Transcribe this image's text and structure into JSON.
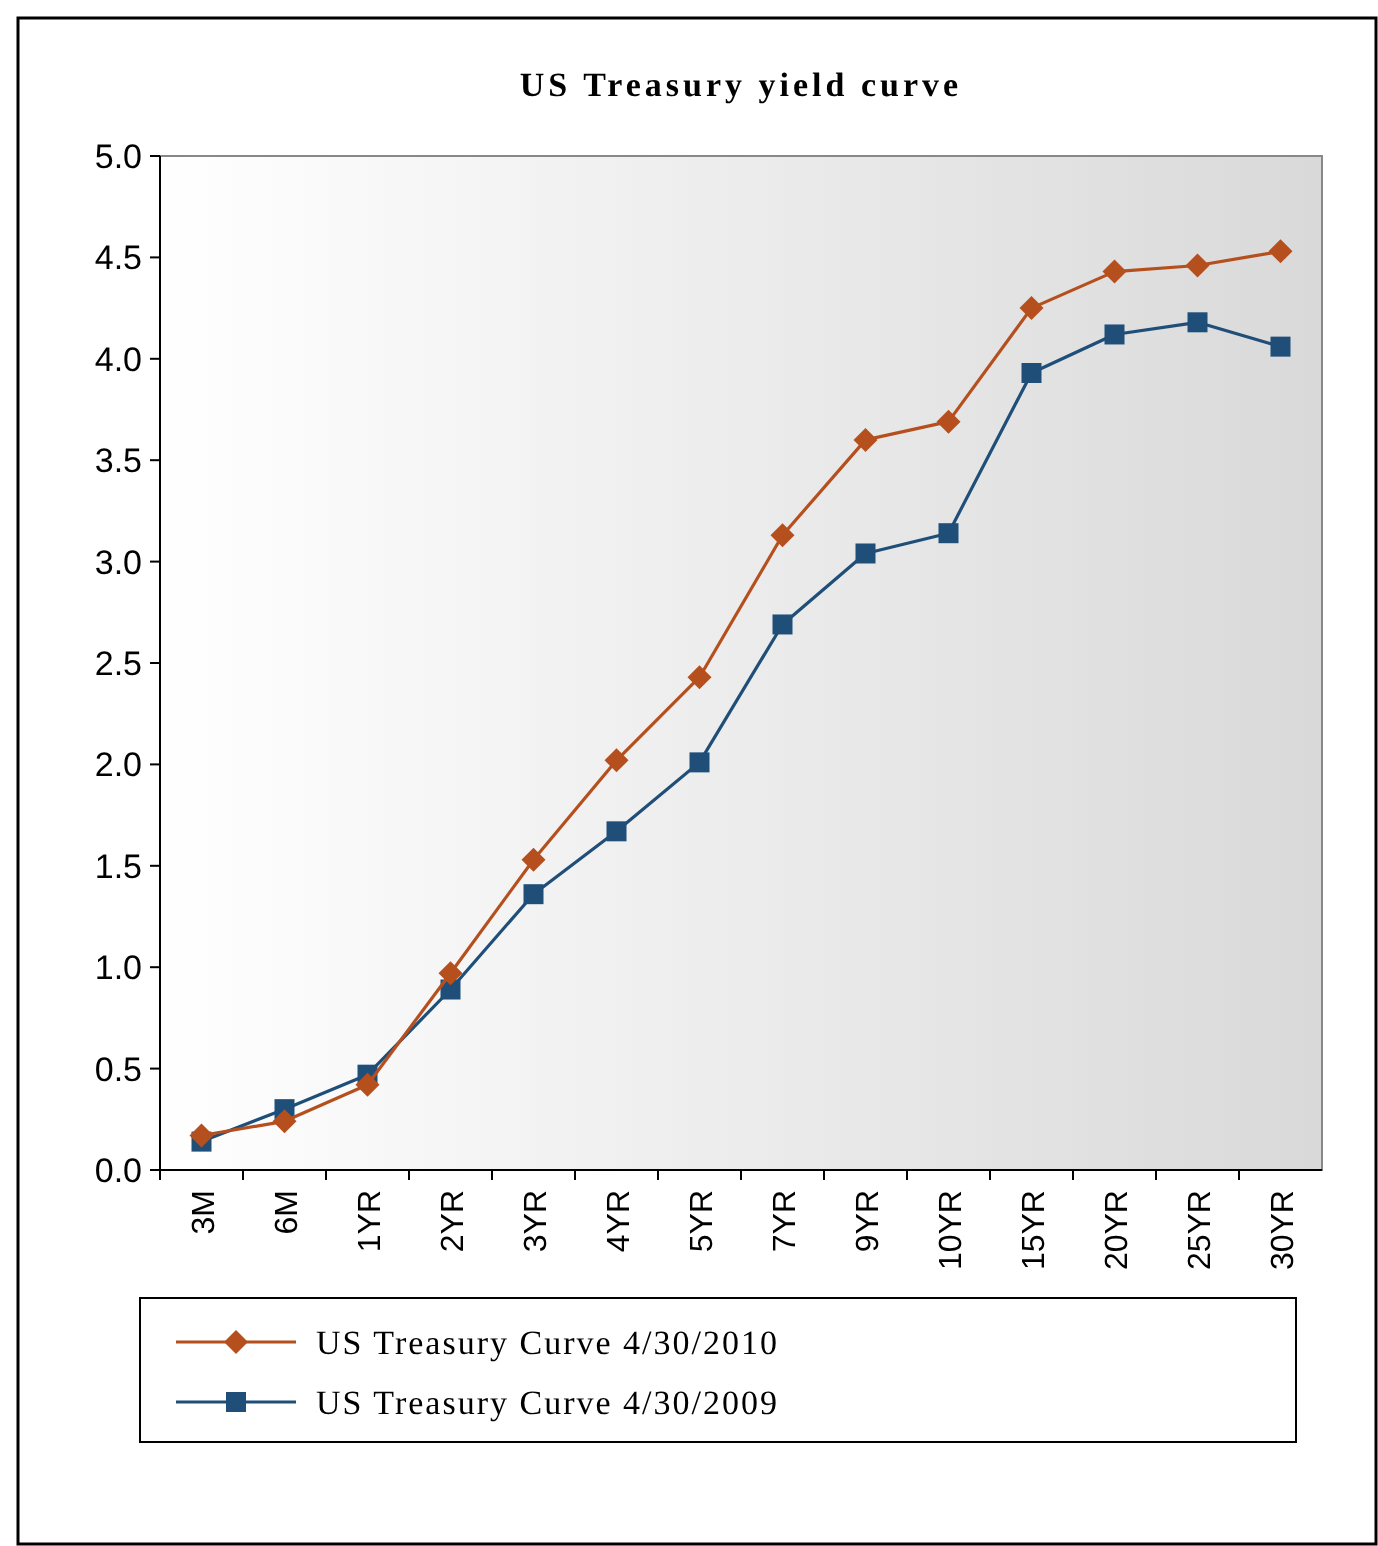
{
  "chart_data": {
    "type": "line",
    "title": "US Treasury yield curve",
    "categories": [
      "3M",
      "6M",
      "1YR",
      "2YR",
      "3YR",
      "4YR",
      "5YR",
      "7YR",
      "9YR",
      "10YR",
      "15YR",
      "20YR",
      "25YR",
      "30YR"
    ],
    "series": [
      {
        "name": "US Treasury Curve 4/30/2010",
        "color": "#b5501e",
        "marker": "diamond",
        "values": [
          0.17,
          0.24,
          0.42,
          0.97,
          1.53,
          2.02,
          2.43,
          3.13,
          3.6,
          3.69,
          4.25,
          4.43,
          4.46,
          4.53
        ]
      },
      {
        "name": "US Treasury Curve 4/30/2009",
        "color": "#1f4e79",
        "marker": "square",
        "values": [
          0.14,
          0.3,
          0.47,
          0.89,
          1.36,
          1.67,
          2.01,
          2.69,
          3.04,
          3.14,
          3.93,
          4.12,
          4.18,
          4.06
        ]
      }
    ],
    "ylim": [
      0,
      5
    ],
    "yticks": [
      {
        "value": 0,
        "label": "0.0"
      },
      {
        "value": 0.5,
        "label": "0.5"
      },
      {
        "value": 1,
        "label": "1.0"
      },
      {
        "value": 1.5,
        "label": "1.5"
      },
      {
        "value": 2,
        "label": "2.0"
      },
      {
        "value": 2.5,
        "label": "2.5"
      },
      {
        "value": 3,
        "label": "3.0"
      },
      {
        "value": 3.5,
        "label": "3.5"
      },
      {
        "value": 4,
        "label": "4.0"
      },
      {
        "value": 4.5,
        "label": "4.5"
      },
      {
        "value": 5,
        "label": "5.0"
      }
    ],
    "grid": false,
    "legend": "bottom"
  }
}
